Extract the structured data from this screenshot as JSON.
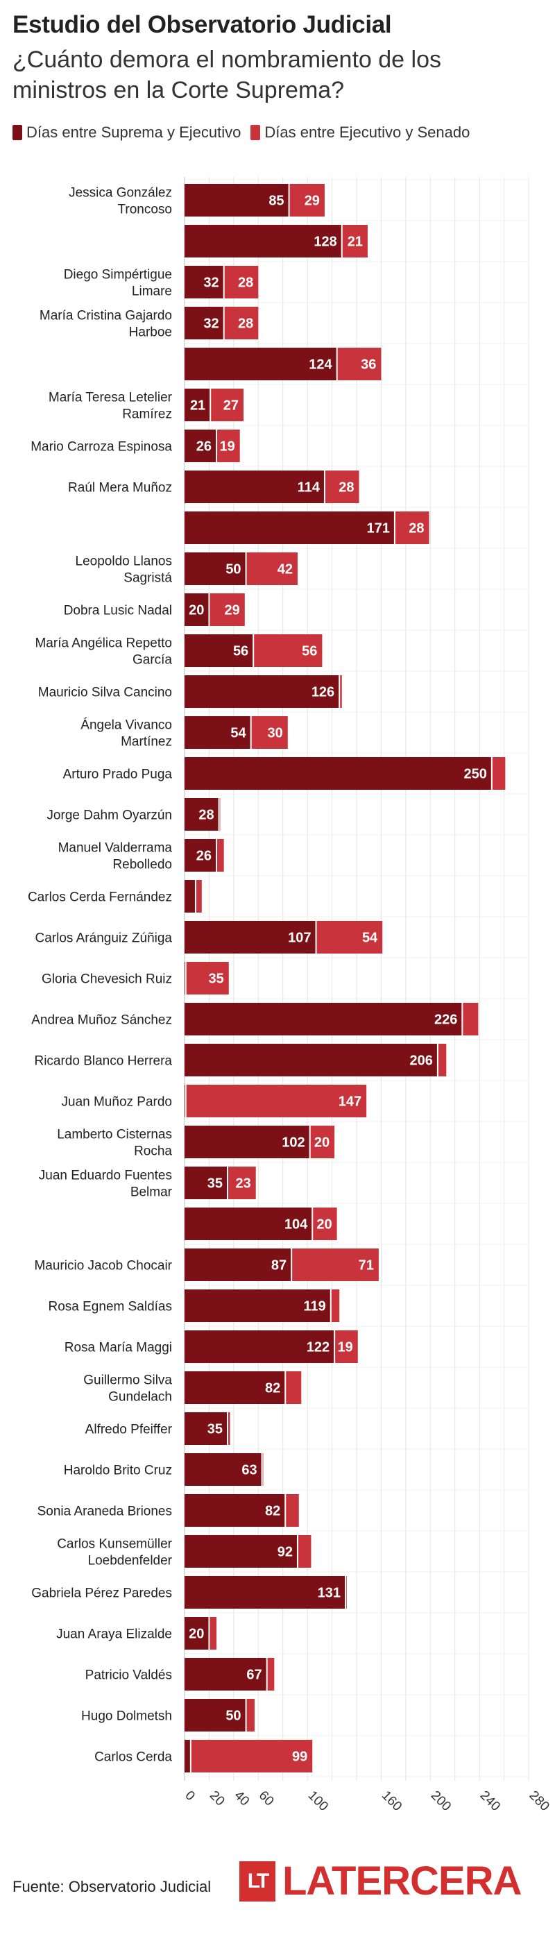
{
  "header": {
    "title": "Estudio del Observatorio Judicial",
    "subtitle": "¿Cuánto demora el nombramiento de los ministros en la Corte Suprema?"
  },
  "legend": {
    "items": [
      {
        "label": "Días entre Suprema y Ejecutivo",
        "color": "#7b1116"
      },
      {
        "label": "Días entre Ejecutivo y Senado",
        "color": "#c9343c"
      }
    ]
  },
  "chart_data": {
    "type": "bar",
    "orientation": "horizontal",
    "stacked": true,
    "xlim": [
      0,
      280
    ],
    "x_ticks": [
      0,
      20,
      40,
      60,
      100,
      160,
      200,
      240,
      280
    ],
    "grid": true,
    "categories": [
      "Jessica González Troncoso",
      "",
      "Diego Simpértigue Limare",
      "María Cristina Gajardo Harboe",
      "",
      "María Teresa Letelier Ramírez",
      "Mario Carroza Espinosa",
      "Raúl Mera Muñoz",
      "",
      "Leopoldo Llanos Sagristá",
      "Dobra Lusic Nadal",
      "María Angélica Repetto García",
      "Mauricio Silva Cancino",
      "Ángela Vivanco Martínez",
      "Arturo Prado Puga",
      "Jorge Dahm Oyarzún",
      "Manuel Valderrama Rebolledo",
      "Carlos Cerda Fernández",
      "Carlos Aránguiz Zúñiga",
      "Gloria Chevesich Ruiz",
      "Andrea Muñoz Sánchez",
      "Ricardo Blanco Herrera",
      "Juan Muñoz Pardo",
      "Lamberto Cisternas Rocha",
      "Juan Eduardo Fuentes Belmar",
      "",
      "Mauricio Jacob Chocair",
      "Rosa Egnem Saldías",
      "Rosa María Maggi",
      "Guillermo Silva Gundelach",
      "Alfredo Pfeiffer",
      "Haroldo Brito Cruz",
      "Sonia Araneda Briones",
      "Carlos Kunsemüller Loebdenfelder",
      "Gabriela Pérez Paredes",
      "Juan Araya Elizalde",
      "Patricio Valdés",
      "Hugo Dolmetsh",
      "Carlos Cerda"
    ],
    "series": [
      {
        "name": "Días entre Suprema y Ejecutivo",
        "values": [
          85,
          128,
          32,
          32,
          124,
          21,
          26,
          114,
          171,
          50,
          20,
          56,
          126,
          54,
          250,
          28,
          26,
          9,
          107,
          1,
          226,
          206,
          1,
          102,
          35,
          104,
          87,
          119,
          122,
          82,
          35,
          63,
          82,
          92,
          131,
          20,
          67,
          50,
          5
        ],
        "labels": [
          "85",
          "128",
          "32",
          "32",
          "124",
          "21",
          "26",
          "114",
          "171",
          "50",
          "20",
          "56",
          "126",
          "54",
          "250",
          "28",
          "26",
          "",
          "107",
          "",
          "226",
          "206",
          "",
          "102",
          "35",
          "104",
          "87",
          "119",
          "122",
          "82",
          "35",
          "63",
          "82",
          "92",
          "131",
          "20",
          "67",
          "50",
          ""
        ]
      },
      {
        "name": "Días entre Ejecutivo y Senado",
        "values": [
          29,
          21,
          28,
          28,
          36,
          27,
          19,
          28,
          28,
          42,
          29,
          56,
          2,
          30,
          11,
          1,
          6,
          5,
          54,
          35,
          13,
          7,
          147,
          20,
          23,
          20,
          71,
          7,
          19,
          13,
          2,
          1,
          11,
          11,
          1,
          6,
          6,
          7,
          99
        ],
        "labels": [
          "29",
          "21",
          "28",
          "28",
          "36",
          "27",
          "19",
          "28",
          "28",
          "42",
          "29",
          "56",
          "",
          "30",
          "",
          "",
          "",
          "",
          "54",
          "35",
          "",
          "",
          "147",
          "20",
          "23",
          "20",
          "71",
          "",
          "19",
          "",
          "",
          "",
          "",
          "",
          "",
          "",
          "",
          "",
          "99"
        ]
      }
    ]
  },
  "footer": {
    "source": "Fuente: Observatorio Judicial",
    "logo_box": "LT",
    "logo_text": "LATERCERA"
  }
}
